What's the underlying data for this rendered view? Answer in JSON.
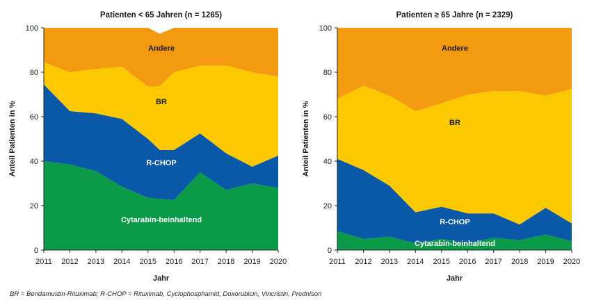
{
  "chart_data": [
    {
      "type": "area",
      "stacked": true,
      "title": "Patienten < 65 Jahren (n = 1265)",
      "xlabel": "Jahr",
      "ylabel": "Anteil Patienten in %",
      "ylim": [
        0,
        100
      ],
      "yticks": [
        0,
        20,
        40,
        60,
        80,
        100
      ],
      "x": [
        2011,
        2012,
        2013,
        2014,
        2015,
        2016,
        2017,
        2018,
        2019,
        2020
      ],
      "series": [
        {
          "name": "Cytarabin-beinhaltend",
          "color": "#0a9a48",
          "x": [
            2011,
            2012,
            2013,
            2014,
            2015,
            2016,
            2017,
            2018,
            2019,
            2020
          ],
          "values": [
            40,
            38.5,
            35.5,
            28.5,
            23.5,
            22.5,
            35,
            27,
            30,
            28
          ]
        },
        {
          "name": "R-CHOP",
          "color": "#0a59a8",
          "x": [
            2011,
            2012,
            2013,
            2014,
            2015,
            2015.45,
            2016,
            2017,
            2018,
            2019,
            2020
          ],
          "values": [
            34.5,
            24,
            26,
            30.5,
            26.5,
            22,
            22.5,
            17.5,
            16.5,
            7.5,
            14.5
          ]
        },
        {
          "name": "BR",
          "color": "#fcc800",
          "x": [
            2011,
            2012,
            2013,
            2014,
            2015,
            2016,
            2017,
            2018,
            2019,
            2020
          ],
          "values": [
            10,
            17.5,
            20,
            23.5,
            23.5,
            35,
            30.5,
            39.5,
            42.5,
            35.5
          ]
        },
        {
          "name": "Andere",
          "color": "#f39a10",
          "x": [
            2011,
            2012,
            2013,
            2014,
            2015,
            2016,
            2017,
            2018,
            2019,
            2020
          ],
          "values": [
            15.5,
            20,
            18.5,
            17.5,
            26.5,
            20,
            17,
            17.5,
            20,
            22
          ]
        }
      ],
      "annotations": [
        "Andere",
        "BR",
        "R-CHOP",
        "Cytarabin-beinhaltend"
      ]
    },
    {
      "type": "area",
      "stacked": true,
      "title": "Patienten ≥ 65 Jahre (n = 2329)",
      "xlabel": "Jahr",
      "ylabel": "Anteil Patienten in %",
      "ylim": [
        0,
        100
      ],
      "yticks": [
        0,
        20,
        40,
        60,
        80,
        100
      ],
      "x": [
        2011,
        2012,
        2013,
        2014,
        2015,
        2016,
        2017,
        2018,
        2019,
        2020
      ],
      "series": [
        {
          "name": "Cytarabin-beinhaltend",
          "color": "#0a9a48",
          "x": [
            2011,
            2012,
            2013,
            2014,
            2015,
            2016,
            2017,
            2018,
            2019,
            2020
          ],
          "values": [
            8.5,
            5,
            6,
            3,
            5,
            3,
            5.5,
            4.5,
            7,
            4
          ]
        },
        {
          "name": "R-CHOP",
          "color": "#0a59a8",
          "x": [
            2011,
            2012,
            2013,
            2014,
            2015,
            2016,
            2017,
            2018,
            2019,
            2020
          ],
          "values": [
            32.5,
            31,
            23,
            14,
            14.5,
            13.5,
            11,
            7,
            12,
            8
          ]
        },
        {
          "name": "BR",
          "color": "#fcc800",
          "x": [
            2011,
            2012,
            2013,
            2014,
            2015,
            2016,
            2017,
            2018,
            2019,
            2020
          ],
          "values": [
            27,
            38,
            40.5,
            45.5,
            46.5,
            53.5,
            55,
            60,
            50.5,
            60.5
          ]
        },
        {
          "name": "Andere",
          "color": "#f39a10",
          "x": [
            2011,
            2012,
            2013,
            2014,
            2015,
            2016,
            2017,
            2018,
            2019,
            2020
          ],
          "values": [
            32,
            26,
            30.5,
            37.5,
            34,
            30,
            28.5,
            28.5,
            30.5,
            27.5
          ]
        }
      ],
      "annotations": [
        "Andere",
        "BR",
        "R-CHOP",
        "Cytarabin-beinhaltend"
      ]
    }
  ],
  "footnote": "BR = Bendamustin-Rituximab; R-CHOP = Rituximab, Cyclophosphamid, Doxorubicin, Vincristin, Prednison"
}
